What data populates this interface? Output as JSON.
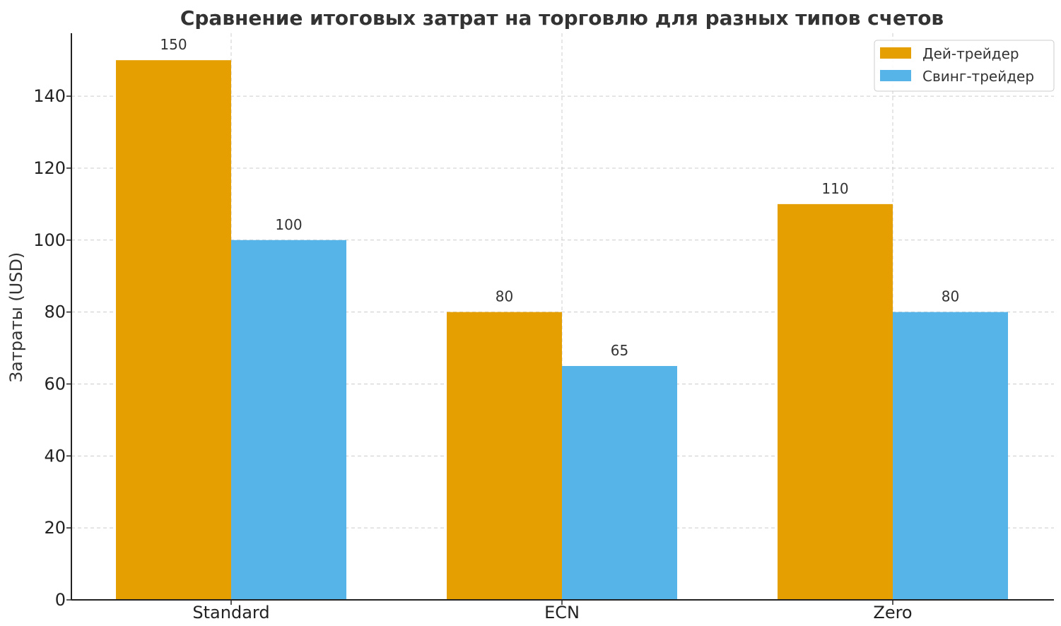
{
  "chart_data": {
    "type": "bar",
    "title": "Сравнение итоговых затрат на торговлю для разных типов счетов",
    "xlabel": "",
    "ylabel": "Затраты (USD)",
    "categories": [
      "Standard",
      "ECN",
      "Zero"
    ],
    "series": [
      {
        "name": "Дей-трейдер",
        "values": [
          150,
          80,
          110
        ],
        "color": "#E69F00"
      },
      {
        "name": "Свинг-трейдер",
        "values": [
          100,
          65,
          80
        ],
        "color": "#56B4E9"
      }
    ],
    "ylim": [
      0,
      157.5
    ],
    "yticks": [
      0,
      20,
      40,
      60,
      80,
      100,
      120,
      140
    ],
    "grid": true,
    "legend_position": "top-right",
    "data_labels": true
  }
}
